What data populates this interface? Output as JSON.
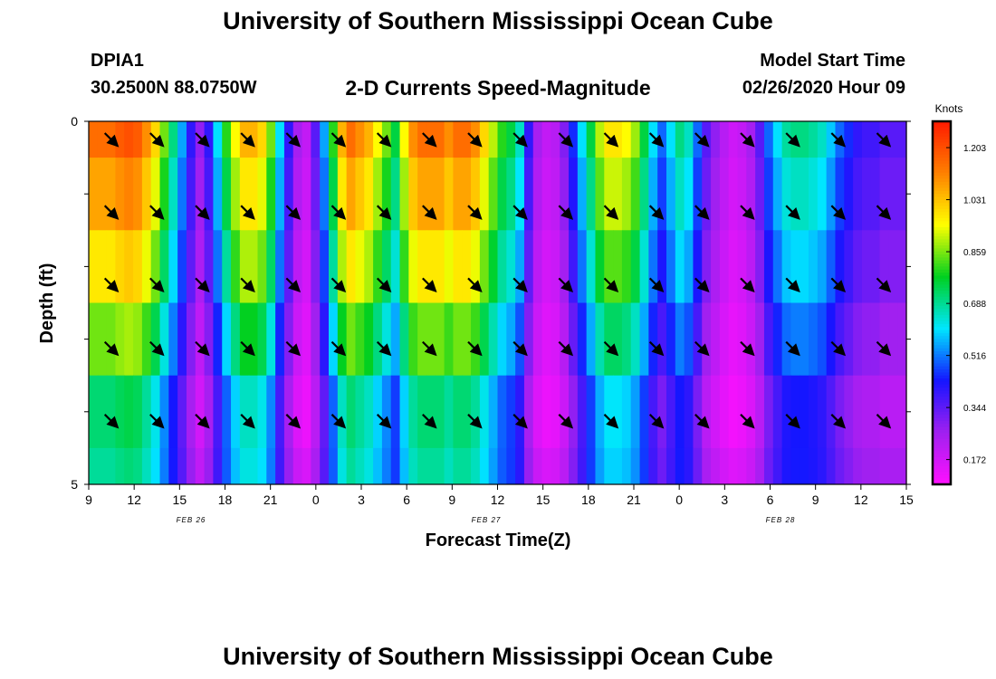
{
  "header": {
    "title": "University of Southern Mississippi Ocean Cube",
    "station_id": "DPIA1",
    "station_coords": "30.2500N 88.0750W",
    "chart_title": "2-D Currents Speed-Magnitude",
    "model_start_label": "Model Start Time",
    "model_start_value": "02/26/2020 Hour 09"
  },
  "footer": {
    "title": "University of Southern Mississippi Ocean Cube"
  },
  "chart_data": {
    "type": "heatmap",
    "title": "2-D Currents Speed-Magnitude",
    "xlabel": "Forecast Time(Z)",
    "ylabel": "Depth (ft)",
    "x_tick_labels": [
      "9",
      "12",
      "15",
      "18",
      "21",
      "0",
      "3",
      "6",
      "9",
      "12",
      "15",
      "18",
      "21",
      "0",
      "3",
      "6",
      "9",
      "12",
      "15"
    ],
    "date_labels": [
      "FEB 26",
      "FEB 27",
      "FEB 28"
    ],
    "y_tick_labels": [
      "0",
      "5"
    ],
    "ylim": [
      0,
      5
    ],
    "colorbar": {
      "unit": "Knots",
      "ticks": [
        "1.203",
        "1.031",
        "0.859",
        "0.688",
        "0.516",
        "0.344",
        "0.172"
      ],
      "colors": [
        "#ff10ff",
        "#a020f0",
        "#1515ff",
        "#00e6ff",
        "#00d020",
        "#ffff00",
        "#ff8000",
        "#ff1a00"
      ]
    },
    "depth_layers": 5,
    "hours": 54,
    "column_speeds_surface": [
      1.15,
      1.15,
      1.15,
      1.18,
      1.2,
      1.18,
      1.1,
      1.0,
      0.85,
      0.7,
      0.55,
      0.4,
      0.28,
      0.4,
      0.6,
      0.8,
      0.95,
      1.05,
      1.05,
      1.0,
      0.85,
      0.6,
      0.4,
      0.25,
      0.2,
      0.35,
      0.55,
      0.8,
      1.05,
      1.15,
      1.1,
      1.05,
      0.95,
      0.85,
      0.75,
      0.95,
      1.1,
      1.15,
      1.15,
      1.15,
      1.1,
      1.15,
      1.15,
      1.1,
      1.0,
      0.9,
      0.8,
      0.75,
      0.65,
      0.4,
      0.25,
      0.2,
      0.22,
      0.3,
      0.45,
      0.6,
      0.75,
      0.9,
      0.98,
      0.98,
      0.95,
      0.88,
      0.75,
      0.6,
      0.5,
      0.6,
      0.7,
      0.65,
      0.5,
      0.35,
      0.28,
      0.22,
      0.18,
      0.2,
      0.25,
      0.35,
      0.5,
      0.6,
      0.68,
      0.7,
      0.7,
      0.68,
      0.65,
      0.58,
      0.5,
      0.45,
      0.4,
      0.38,
      0.38,
      0.35,
      0.35,
      0.35
    ],
    "layer_factors": [
      1.0,
      0.93,
      0.85,
      0.74,
      0.62
    ],
    "bottom_factor": 0.45,
    "arrows": {
      "x_hours": [
        1,
        4,
        7,
        10,
        13,
        16,
        19,
        22,
        25,
        28,
        31,
        34,
        37,
        40,
        43,
        46,
        49,
        52
      ],
      "directions_deg": [
        135,
        135,
        135,
        135,
        135,
        135,
        135,
        135,
        135,
        135,
        135,
        135,
        135,
        135,
        135,
        135,
        135,
        135
      ]
    }
  }
}
